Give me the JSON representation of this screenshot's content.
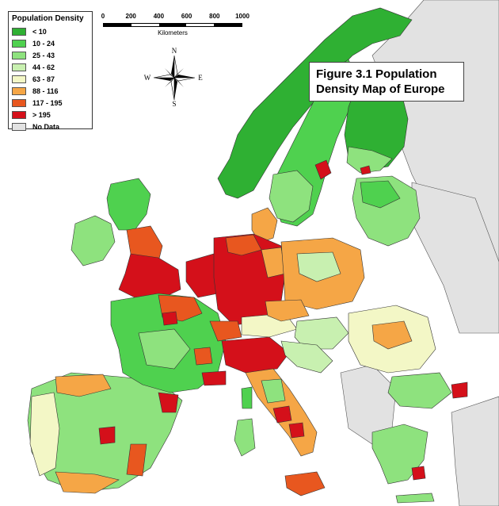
{
  "legend": {
    "title": "Population Density",
    "items": [
      {
        "label": "< 10",
        "color": "#2fb033"
      },
      {
        "label": "10 - 24",
        "color": "#4fd14f"
      },
      {
        "label": "25 - 43",
        "color": "#8ee27e"
      },
      {
        "label": "44 - 62",
        "color": "#c8f0b0"
      },
      {
        "label": "63 - 87",
        "color": "#f3f7c6"
      },
      {
        "label": "88 - 116",
        "color": "#f5a646"
      },
      {
        "label": "117 - 195",
        "color": "#e8571f"
      },
      {
        "label": "> 195",
        "color": "#d4101a"
      },
      {
        "label": "No Data",
        "color": "#e2e2e2"
      }
    ]
  },
  "scale": {
    "ticks": [
      "0",
      "200",
      "400",
      "600",
      "800",
      "1000"
    ],
    "units": "Kilometers"
  },
  "compass": {
    "n": "N",
    "s": "S",
    "e": "E",
    "w": "W"
  },
  "caption": {
    "line1": "Figure 3.1 Population",
    "line2": "Density Map of Europe"
  },
  "colors": {
    "water": "#ffffff",
    "outside": "#e2e2e2",
    "border": "#333333"
  }
}
